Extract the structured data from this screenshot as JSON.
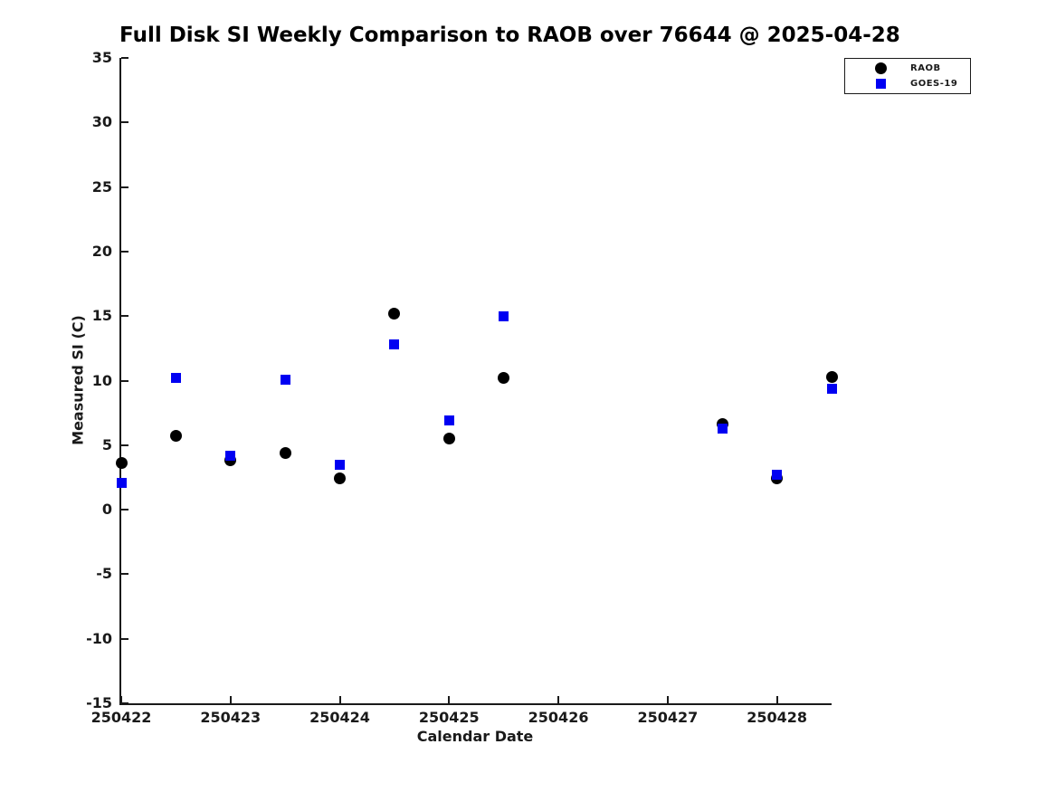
{
  "colors": {
    "background": "#ffffff",
    "axis": "#1a1a1a",
    "title": "#000000",
    "raob": "#000000",
    "goes19": "#0000f2"
  },
  "chart_data": {
    "type": "scatter",
    "title": "Full Disk SI Weekly Comparison to RAOB over 76644 @ 2025-04-28",
    "xlabel": "Calendar Date",
    "ylabel": "Measured SI (C)",
    "xlim": [
      250422,
      250428.5
    ],
    "ylim": [
      -15,
      35
    ],
    "x_ticks": [
      250422,
      250423,
      250424,
      250425,
      250426,
      250427,
      250428
    ],
    "y_ticks": [
      -15,
      -10,
      -5,
      0,
      5,
      10,
      15,
      20,
      25,
      30,
      35
    ],
    "grid": false,
    "legend_position": "top-right",
    "x": [
      250422,
      250422.5,
      250423,
      250423.5,
      250424,
      250424.5,
      250425,
      250425.5,
      250427.5,
      250428,
      250428.5
    ],
    "series": [
      {
        "name": "RAOB",
        "marker": "circle",
        "color": "#000000",
        "values": [
          3.6,
          5.7,
          3.8,
          4.4,
          2.4,
          15.2,
          5.5,
          10.2,
          6.6,
          2.4,
          10.3
        ]
      },
      {
        "name": "GOES-19",
        "marker": "square",
        "color": "#0000f2",
        "values": [
          2.1,
          10.2,
          4.2,
          10.1,
          3.5,
          12.8,
          6.9,
          15.0,
          6.3,
          2.7,
          9.4
        ]
      }
    ]
  }
}
